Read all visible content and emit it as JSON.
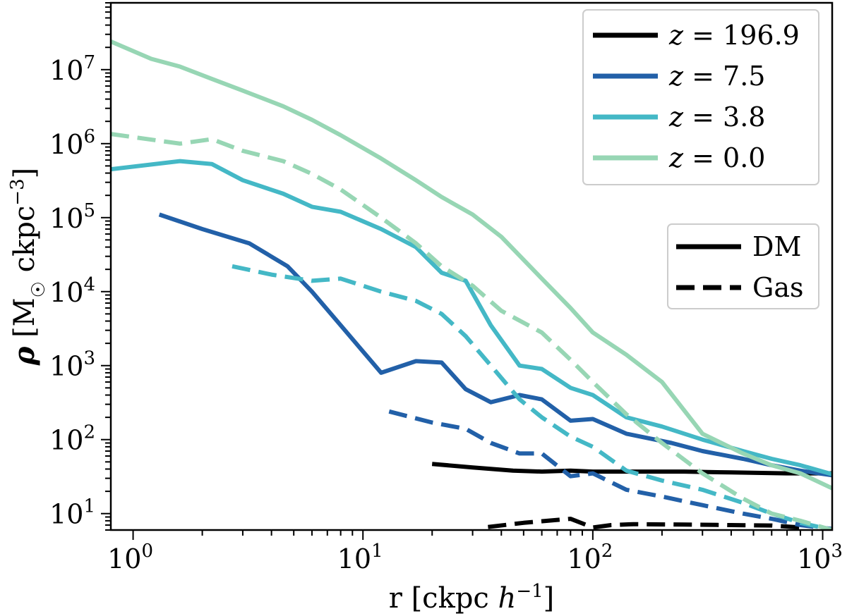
{
  "chart_data": {
    "type": "line",
    "xscale": "log",
    "yscale": "log",
    "xlim": [
      0.8,
      1100
    ],
    "ylim": [
      6.0,
      80000000
    ],
    "xlabel": "r [ckpc h⁻¹]",
    "ylabel": "ρ [M☉ ckpc⁻³]",
    "x_ticks": [
      {
        "base": "10",
        "exp": "0",
        "value": 1
      },
      {
        "base": "10",
        "exp": "1",
        "value": 10
      },
      {
        "base": "10",
        "exp": "2",
        "value": 100
      },
      {
        "base": "10",
        "exp": "3",
        "value": 1000
      }
    ],
    "y_ticks": [
      {
        "base": "10",
        "exp": "1",
        "value": 10
      },
      {
        "base": "10",
        "exp": "2",
        "value": 100
      },
      {
        "base": "10",
        "exp": "3",
        "value": 1000
      },
      {
        "base": "10",
        "exp": "4",
        "value": 10000
      },
      {
        "base": "10",
        "exp": "5",
        "value": 100000
      },
      {
        "base": "10",
        "exp": "6",
        "value": 1000000
      },
      {
        "base": "10",
        "exp": "7",
        "value": 10000000
      }
    ],
    "colors": {
      "z196.9": "#000000",
      "z7.5": "#2260a8",
      "z3.8": "#44b8c6",
      "z0.0": "#97d6b4"
    },
    "legend_redshift": {
      "placement": "top-right",
      "entries": [
        {
          "var": "z",
          "value": "= 196.9",
          "color": "#000000"
        },
        {
          "var": "z",
          "value": "= 7.5",
          "color": "#2260a8"
        },
        {
          "var": "z",
          "value": "= 3.8",
          "color": "#44b8c6"
        },
        {
          "var": "z",
          "value": "= 0.0",
          "color": "#97d6b4"
        }
      ]
    },
    "legend_component": {
      "placement": "right",
      "entries": [
        {
          "label": "DM",
          "style": "solid"
        },
        {
          "label": "Gas",
          "style": "dashed"
        }
      ]
    },
    "series": [
      {
        "name": "z = 196.9 DM",
        "color": "#000000",
        "style": "solid",
        "x": [
          20,
          30,
          45,
          60,
          80,
          100,
          150,
          250,
          400,
          700,
          1100
        ],
        "y": [
          47,
          42,
          38,
          37,
          38,
          37,
          37,
          37,
          36,
          35,
          35
        ]
      },
      {
        "name": "z = 196.9 Gas",
        "color": "#000000",
        "style": "dashed",
        "x": [
          35,
          50,
          80,
          100,
          120,
          150,
          250,
          400,
          600,
          800
        ],
        "y": [
          6.6,
          7.5,
          8.5,
          6.5,
          7.0,
          7.2,
          7.1,
          7.0,
          6.9,
          6.5
        ]
      },
      {
        "name": "z = 7.5 DM",
        "color": "#2260a8",
        "style": "solid",
        "x": [
          1.3,
          2,
          3.2,
          4.7,
          6,
          8,
          12,
          17,
          22,
          28,
          36,
          48,
          60,
          80,
          100,
          140,
          220,
          300,
          450,
          600,
          800,
          1100
        ],
        "y": [
          110000,
          70000,
          45000,
          22000,
          10000,
          3500,
          800,
          1150,
          1100,
          480,
          320,
          400,
          350,
          180,
          190,
          120,
          90,
          70,
          55,
          45,
          38,
          33
        ]
      },
      {
        "name": "z = 7.5 Gas",
        "color": "#2260a8",
        "style": "dashed",
        "x": [
          13,
          20,
          28,
          36,
          48,
          60,
          80,
          100,
          140,
          200,
          300,
          450,
          600,
          800,
          1100
        ],
        "y": [
          240,
          170,
          140,
          90,
          65,
          65,
          32,
          35,
          21,
          17,
          13,
          10,
          8.5,
          7,
          6.2
        ]
      },
      {
        "name": "z = 3.8 DM",
        "color": "#44b8c6",
        "style": "solid",
        "x": [
          0.8,
          1.6,
          2.2,
          3,
          4.5,
          6,
          8,
          12,
          17,
          22,
          28,
          36,
          48,
          60,
          80,
          100,
          140,
          200,
          300,
          450,
          600,
          800,
          1100
        ],
        "y": [
          450000,
          580000,
          530000,
          320000,
          210000,
          140000,
          120000,
          70000,
          40000,
          18000,
          14000,
          3500,
          1000,
          900,
          500,
          400,
          200,
          150,
          100,
          70,
          55,
          45,
          34
        ]
      },
      {
        "name": "z = 3.8 Gas",
        "color": "#44b8c6",
        "style": "dashed",
        "x": [
          2.7,
          4,
          6,
          8,
          12,
          17,
          22,
          28,
          36,
          48,
          60,
          80,
          100,
          140,
          200,
          300,
          450,
          600,
          800,
          1100
        ],
        "y": [
          22000,
          17000,
          14000,
          15000,
          10000,
          7500,
          5000,
          2500,
          1000,
          350,
          200,
          110,
          80,
          38,
          28,
          21,
          14,
          10,
          7.5,
          6.0
        ]
      },
      {
        "name": "z = 0.0 DM",
        "color": "#97d6b4",
        "style": "solid",
        "x": [
          0.8,
          1.2,
          1.6,
          2.2,
          3,
          4.5,
          6,
          8,
          12,
          17,
          22,
          30,
          40,
          60,
          80,
          100,
          140,
          200,
          300,
          450,
          600,
          800,
          1100
        ],
        "y": [
          24000000,
          14000000,
          11000000,
          7500000,
          5200000,
          3200000,
          2100000,
          1300000,
          630000,
          320000,
          190000,
          110000,
          55000,
          15000,
          6000,
          2800,
          1400,
          600,
          120,
          65,
          45,
          35,
          22
        ]
      },
      {
        "name": "z = 0.0 Gas",
        "color": "#97d6b4",
        "style": "dashed",
        "x": [
          0.8,
          1.6,
          2.2,
          3,
          4.5,
          6,
          8,
          12,
          17,
          22,
          30,
          40,
          60,
          80,
          100,
          140,
          200,
          300,
          450,
          600,
          800,
          1100
        ],
        "y": [
          1350000,
          1000000,
          1150000,
          800000,
          580000,
          390000,
          240000,
          100000,
          45000,
          22000,
          12000,
          5500,
          2800,
          1200,
          600,
          220,
          90,
          35,
          16,
          10,
          8,
          6.0
        ]
      }
    ]
  }
}
